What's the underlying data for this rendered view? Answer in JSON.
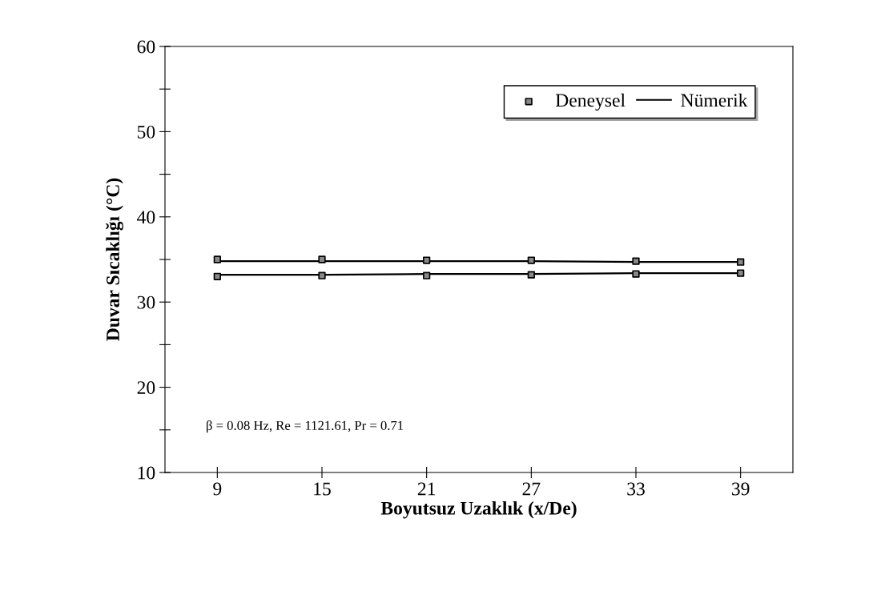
{
  "chart_data": {
    "type": "line",
    "xlabel": "Boyutsuz Uzaklık (x/De)",
    "ylabel": "Duvar Sıcaklığı (°C)",
    "x": [
      9,
      15,
      21,
      27,
      33,
      39
    ],
    "series": [
      {
        "name": "Deneysel",
        "type": "scatter",
        "color": "#000000",
        "marker": "square",
        "values": [
          35.0,
          35.0,
          34.9,
          34.9,
          34.8,
          34.7
        ]
      },
      {
        "type": "scatter",
        "color": "#000000",
        "marker": "square",
        "values": [
          33.0,
          33.1,
          33.1,
          33.2,
          33.3,
          33.4
        ]
      },
      {
        "name": "Nümerik",
        "color": "#000000",
        "line_style": "solid",
        "values": [
          34.8,
          34.8,
          34.8,
          34.8,
          34.7,
          34.7
        ]
      },
      {
        "color": "#000000",
        "line_style": "solid",
        "values": [
          33.2,
          33.2,
          33.3,
          33.3,
          33.4,
          33.4
        ]
      }
    ],
    "xlim": [
      6,
      42
    ],
    "xticks": [
      9,
      15,
      21,
      27,
      33,
      39
    ],
    "ylim": [
      10,
      60
    ],
    "yticks": [
      10,
      {
        "value": 15,
        "label": null
      },
      20,
      {
        "value": 25,
        "label": null
      },
      30,
      {
        "value": 35,
        "label": null
      },
      40,
      {
        "value": 45,
        "label": null
      },
      50,
      {
        "value": 55,
        "label": null
      },
      60
    ],
    "annotations": [
      "β = 0.08 Hz, Re = 1121.61, Pr = 0.71"
    ],
    "legend": "top right",
    "grid": false
  }
}
